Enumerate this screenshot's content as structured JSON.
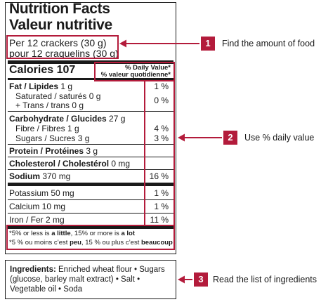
{
  "label": {
    "title_en": "Nutrition Facts",
    "title_fr": "Valeur nutritive",
    "serving_en": "Per 12 crackers (30 g)",
    "serving_fr": "pour 12 craquelins (30 g)",
    "calories_label": "Calories 107",
    "dv_header_en": "% Daily Value*",
    "dv_header_fr": "% valeur quotidienne*",
    "rows": {
      "fat": {
        "name": "Fat / Lipides",
        "amount": " 1 g",
        "pct": "1 %"
      },
      "saturated": {
        "text": "Saturated / saturés 0 g"
      },
      "trans": {
        "text": "+ Trans / trans 0 g",
        "pct": "0 %"
      },
      "carb": {
        "name": "Carbohydrate / Glucides",
        "amount": " 27 g"
      },
      "fibre": {
        "text": "Fibre / Fibres 1 g",
        "pct": "4 %"
      },
      "sugars": {
        "text": "Sugars / Sucres 3 g",
        "pct": "3 %"
      },
      "protein": {
        "name": "Protein / Protéines",
        "amount": " 3 g"
      },
      "cholesterol": {
        "name": "Cholesterol / Cholestérol",
        "amount": " 0 mg"
      },
      "sodium": {
        "name": "Sodium",
        "amount": " 370 mg",
        "pct": "16 %"
      },
      "potassium": {
        "text": "Potassium 50 mg",
        "pct": "1 %"
      },
      "calcium": {
        "text": "Calcium 10 mg",
        "pct": "1 %"
      },
      "iron": {
        "text": "Iron / Fer 2 mg",
        "pct": "11 %"
      }
    },
    "footnote_en": {
      "a": "*5% or less is ",
      "b": "a little",
      "c": ", 15% or more is ",
      "d": "a lot"
    },
    "footnote_fr": {
      "a": "*5 % ou moins c’est ",
      "b": "peu",
      "c": ", 15 % ou plus c’est ",
      "d": "beaucoup"
    }
  },
  "ingredients": {
    "label": "Ingredients:",
    "line1_rest": " Enriched wheat flour • Sugars",
    "line2": "(glucose, barley malt extract) • Salt •",
    "line3": "Vegetable oil • Soda"
  },
  "callouts": [
    {
      "number": "1",
      "text": "Find the amount of food"
    },
    {
      "number": "2",
      "text": "Use % daily value"
    },
    {
      "number": "3",
      "text": "Read the list of ingredients"
    }
  ],
  "colors": {
    "accent_red": "#b31b3b",
    "text": "#1a1a1a"
  }
}
